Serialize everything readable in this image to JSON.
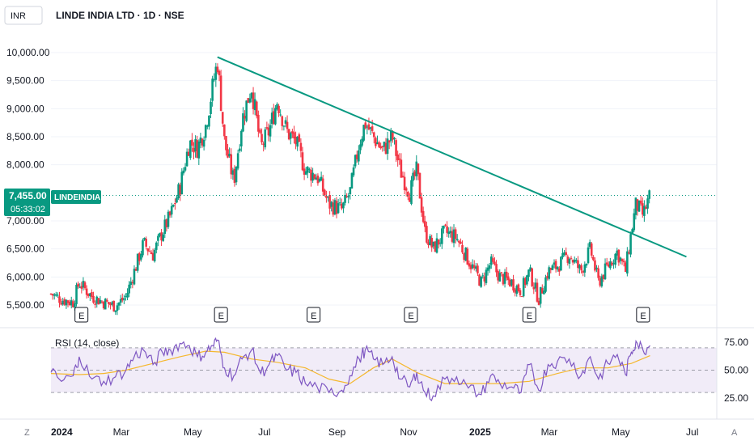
{
  "header": {
    "currency_button": "INR",
    "title": "LINDE INDIA LTD · 1D · NSE"
  },
  "price_tag": {
    "price": "7,455.00",
    "countdown": "05:33:02",
    "symbol": "LINDEINDIA"
  },
  "bottom_bar": {
    "zoom_label": "Z",
    "auto_label": "A"
  },
  "colors": {
    "up": "#089981",
    "down": "#f23645",
    "trendline": "#089981",
    "rsi_line": "#7e57c2",
    "rsi_ma": "#f5b82e",
    "rsi_band": "#ede7f6",
    "grid": "#f0f3fa",
    "tag": "#089981"
  },
  "chart_data": [
    {
      "type": "candlestick",
      "title": "LINDE INDIA LTD · 1D · NSE",
      "ylim": [
        5300,
        10200
      ],
      "y_ticks": [
        "10,000.00",
        "9,500.00",
        "9,000.00",
        "8,500.00",
        "8,000.00",
        "7,000.00",
        "6,500.00",
        "6,000.00",
        "5,500.00"
      ],
      "x_ticks": [
        {
          "label": "2024",
          "bold": true
        },
        {
          "label": "Mar",
          "bold": false
        },
        {
          "label": "May",
          "bold": false
        },
        {
          "label": "Jul",
          "bold": false
        },
        {
          "label": "Sep",
          "bold": false
        },
        {
          "label": "Nov",
          "bold": false
        },
        {
          "label": "2025",
          "bold": true
        },
        {
          "label": "Mar",
          "bold": false
        },
        {
          "label": "May",
          "bold": false
        },
        {
          "label": "Jul",
          "bold": false
        }
      ],
      "close_series": [
        [
          "2024-01-01",
          5700
        ],
        [
          "2024-01-10",
          5600
        ],
        [
          "2024-01-20",
          5550
        ],
        [
          "2024-01-25",
          5900
        ],
        [
          "2024-02-05",
          5650
        ],
        [
          "2024-02-15",
          5550
        ],
        [
          "2024-02-25",
          5480
        ],
        [
          "2024-03-05",
          5650
        ],
        [
          "2024-03-12",
          6100
        ],
        [
          "2024-03-20",
          6600
        ],
        [
          "2024-03-28",
          6400
        ],
        [
          "2024-04-05",
          6800
        ],
        [
          "2024-04-12",
          7100
        ],
        [
          "2024-04-20",
          7600
        ],
        [
          "2024-04-28",
          8400
        ],
        [
          "2024-05-05",
          8300
        ],
        [
          "2024-05-12",
          8700
        ],
        [
          "2024-05-18",
          9400
        ],
        [
          "2024-05-22",
          9850
        ],
        [
          "2024-05-28",
          8400
        ],
        [
          "2024-06-05",
          7700
        ],
        [
          "2024-06-12",
          8800
        ],
        [
          "2024-06-20",
          9400
        ],
        [
          "2024-06-28",
          8300
        ],
        [
          "2024-07-05",
          8600
        ],
        [
          "2024-07-12",
          9150
        ],
        [
          "2024-07-20",
          8600
        ],
        [
          "2024-07-28",
          8400
        ],
        [
          "2024-08-05",
          7900
        ],
        [
          "2024-08-15",
          7800
        ],
        [
          "2024-08-25",
          7300
        ],
        [
          "2024-09-05",
          7200
        ],
        [
          "2024-09-12",
          7500
        ],
        [
          "2024-09-20",
          8400
        ],
        [
          "2024-09-25",
          8750
        ],
        [
          "2024-10-02",
          8500
        ],
        [
          "2024-10-10",
          8250
        ],
        [
          "2024-10-18",
          8500
        ],
        [
          "2024-10-25",
          7900
        ],
        [
          "2024-11-02",
          7500
        ],
        [
          "2024-11-08",
          7900
        ],
        [
          "2024-11-15",
          6800
        ],
        [
          "2024-11-22",
          6500
        ],
        [
          "2024-12-02",
          6800
        ],
        [
          "2024-12-12",
          6700
        ],
        [
          "2024-12-22",
          6300
        ],
        [
          "2025-01-02",
          5900
        ],
        [
          "2025-01-10",
          6250
        ],
        [
          "2025-01-18",
          6000
        ],
        [
          "2025-01-28",
          5900
        ],
        [
          "2025-02-05",
          5750
        ],
        [
          "2025-02-12",
          6100
        ],
        [
          "2025-02-20",
          5600
        ],
        [
          "2025-02-28",
          6100
        ],
        [
          "2025-03-08",
          6200
        ],
        [
          "2025-03-18",
          6400
        ],
        [
          "2025-03-28",
          6100
        ],
        [
          "2025-04-05",
          6500
        ],
        [
          "2025-04-12",
          5900
        ],
        [
          "2025-04-20",
          6200
        ],
        [
          "2025-04-28",
          6450
        ],
        [
          "2025-05-05",
          6100
        ],
        [
          "2025-05-10",
          6800
        ],
        [
          "2025-05-14",
          7300
        ],
        [
          "2025-05-20",
          7100
        ],
        [
          "2025-05-26",
          7455
        ]
      ],
      "trendline": {
        "start": [
          "2024-05-22",
          9920
        ],
        "end": [
          "2025-06-26",
          6360
        ]
      },
      "earnings_markers": [
        "2024-01-27",
        "2024-05-25",
        "2024-08-12",
        "2024-11-03",
        "2025-02-12",
        "2025-05-20"
      ],
      "last_price": 7455
    },
    {
      "type": "line",
      "title": "RSI (14, close)",
      "ylim": [
        15,
        85
      ],
      "y_ticks": [
        "75.00",
        "50.00",
        "25.00"
      ],
      "band": [
        30,
        70
      ],
      "midline": 50,
      "rsi_series": [
        [
          "2024-01-01",
          48
        ],
        [
          "2024-01-10",
          40
        ],
        [
          "2024-01-20",
          45
        ],
        [
          "2024-01-25",
          62
        ],
        [
          "2024-02-05",
          42
        ],
        [
          "2024-02-15",
          40
        ],
        [
          "2024-02-25",
          44
        ],
        [
          "2024-03-05",
          50
        ],
        [
          "2024-03-12",
          62
        ],
        [
          "2024-03-20",
          68
        ],
        [
          "2024-03-28",
          55
        ],
        [
          "2024-04-05",
          66
        ],
        [
          "2024-04-12",
          68
        ],
        [
          "2024-04-20",
          74
        ],
        [
          "2024-04-28",
          72
        ],
        [
          "2024-05-05",
          62
        ],
        [
          "2024-05-12",
          66
        ],
        [
          "2024-05-18",
          72
        ],
        [
          "2024-05-22",
          77
        ],
        [
          "2024-05-28",
          52
        ],
        [
          "2024-06-05",
          45
        ],
        [
          "2024-06-12",
          60
        ],
        [
          "2024-06-20",
          68
        ],
        [
          "2024-06-28",
          47
        ],
        [
          "2024-07-05",
          55
        ],
        [
          "2024-07-12",
          63
        ],
        [
          "2024-07-20",
          50
        ],
        [
          "2024-07-28",
          48
        ],
        [
          "2024-08-05",
          38
        ],
        [
          "2024-08-15",
          35
        ],
        [
          "2024-08-25",
          30
        ],
        [
          "2024-09-05",
          32
        ],
        [
          "2024-09-12",
          45
        ],
        [
          "2024-09-20",
          60
        ],
        [
          "2024-09-25",
          68
        ],
        [
          "2024-10-02",
          60
        ],
        [
          "2024-10-10",
          55
        ],
        [
          "2024-10-18",
          62
        ],
        [
          "2024-10-25",
          42
        ],
        [
          "2024-11-02",
          35
        ],
        [
          "2024-11-08",
          48
        ],
        [
          "2024-11-15",
          30
        ],
        [
          "2024-11-22",
          27
        ],
        [
          "2024-12-02",
          42
        ],
        [
          "2024-12-12",
          44
        ],
        [
          "2024-12-22",
          34
        ],
        [
          "2025-01-02",
          28
        ],
        [
          "2025-01-10",
          45
        ],
        [
          "2025-01-18",
          38
        ],
        [
          "2025-01-28",
          35
        ],
        [
          "2025-02-05",
          30
        ],
        [
          "2025-02-12",
          55
        ],
        [
          "2025-02-20",
          32
        ],
        [
          "2025-02-28",
          55
        ],
        [
          "2025-03-08",
          58
        ],
        [
          "2025-03-18",
          60
        ],
        [
          "2025-03-28",
          45
        ],
        [
          "2025-04-05",
          62
        ],
        [
          "2025-04-12",
          42
        ],
        [
          "2025-04-20",
          56
        ],
        [
          "2025-04-28",
          64
        ],
        [
          "2025-05-05",
          46
        ],
        [
          "2025-05-10",
          66
        ],
        [
          "2025-05-14",
          76
        ],
        [
          "2025-05-20",
          68
        ],
        [
          "2025-05-26",
          72
        ]
      ],
      "rsi_ma_series": [
        [
          "2024-01-01",
          47
        ],
        [
          "2024-01-25",
          46
        ],
        [
          "2024-02-15",
          47
        ],
        [
          "2024-03-05",
          50
        ],
        [
          "2024-03-28",
          56
        ],
        [
          "2024-04-20",
          62
        ],
        [
          "2024-05-12",
          67
        ],
        [
          "2024-05-28",
          66
        ],
        [
          "2024-06-20",
          60
        ],
        [
          "2024-07-12",
          57
        ],
        [
          "2024-08-05",
          52
        ],
        [
          "2024-08-25",
          42
        ],
        [
          "2024-09-12",
          38
        ],
        [
          "2024-10-02",
          52
        ],
        [
          "2024-10-18",
          60
        ],
        [
          "2024-11-08",
          48
        ],
        [
          "2024-12-02",
          38
        ],
        [
          "2024-12-22",
          38
        ],
        [
          "2025-01-18",
          38
        ],
        [
          "2025-02-12",
          40
        ],
        [
          "2025-03-08",
          47
        ],
        [
          "2025-03-28",
          52
        ],
        [
          "2025-04-20",
          52
        ],
        [
          "2025-05-10",
          56
        ],
        [
          "2025-05-26",
          63
        ]
      ]
    }
  ]
}
